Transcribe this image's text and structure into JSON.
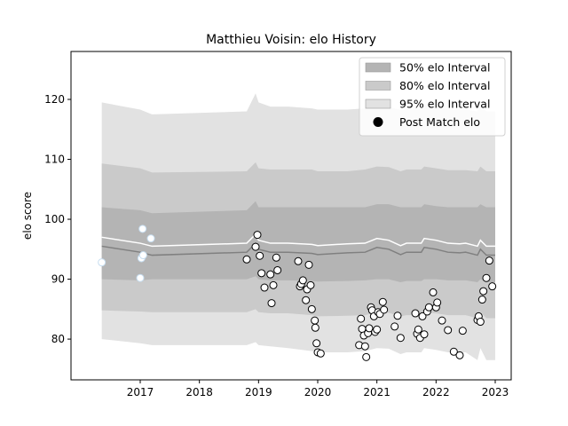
{
  "chart_data": {
    "type": "scatter",
    "title": "Matthieu Voisin: elo History",
    "xlabel": "",
    "ylabel": "elo score",
    "xlim": [
      2015.83,
      2023.27
    ],
    "ylim": [
      73.2,
      128.0
    ],
    "x_ticks": [
      2017,
      2018,
      2019,
      2020,
      2021,
      2022,
      2023
    ],
    "x_tick_labels": [
      "2017",
      "2018",
      "2019",
      "2020",
      "2021",
      "2022",
      "2023"
    ],
    "y_ticks": [
      80,
      90,
      100,
      110,
      120
    ],
    "y_tick_labels": [
      "80",
      "90",
      "100",
      "110",
      "120"
    ],
    "legend_position": "top-right",
    "legend": [
      {
        "label": "50% elo Interval",
        "kind": "patch",
        "color": "#b4b4b4"
      },
      {
        "label": "80% elo Interval",
        "kind": "patch",
        "color": "#cacaca"
      },
      {
        "label": "95% elo Interval",
        "kind": "patch",
        "color": "#e2e2e2"
      },
      {
        "label": "Post Match elo",
        "kind": "marker",
        "color": "#000000"
      }
    ],
    "bands": {
      "x": [
        2016.35,
        2017.0,
        2017.2,
        2018.8,
        2018.95,
        2019.0,
        2019.2,
        2019.5,
        2019.9,
        2020.0,
        2020.5,
        2020.8,
        2021.0,
        2021.2,
        2021.4,
        2021.5,
        2021.75,
        2021.8,
        2022.0,
        2022.2,
        2022.4,
        2022.5,
        2022.7,
        2022.75,
        2022.85,
        2023.0
      ],
      "mean": [
        97.0,
        96.0,
        95.5,
        96.0,
        97.5,
        96.5,
        96.0,
        96.0,
        95.8,
        95.6,
        95.9,
        96.0,
        96.8,
        96.5,
        95.6,
        96.0,
        96.0,
        96.8,
        96.5,
        96.0,
        95.9,
        96.0,
        95.5,
        96.5,
        95.5,
        95.5
      ],
      "p50": [
        [
          90.0,
          102.0
        ],
        [
          89.8,
          101.5
        ],
        [
          90.0,
          101.0
        ],
        [
          90.0,
          101.5
        ],
        [
          90.5,
          103.0
        ],
        [
          90.0,
          102.0
        ],
        [
          89.8,
          102.0
        ],
        [
          89.8,
          102.0
        ],
        [
          89.7,
          102.0
        ],
        [
          89.6,
          102.0
        ],
        [
          89.7,
          102.0
        ],
        [
          89.8,
          102.0
        ],
        [
          90.0,
          102.5
        ],
        [
          90.0,
          102.5
        ],
        [
          89.5,
          102.0
        ],
        [
          89.7,
          102.0
        ],
        [
          89.7,
          102.0
        ],
        [
          90.0,
          102.5
        ],
        [
          90.0,
          102.2
        ],
        [
          89.8,
          102.0
        ],
        [
          89.8,
          102.0
        ],
        [
          89.8,
          102.0
        ],
        [
          89.5,
          102.0
        ],
        [
          90.0,
          102.5
        ],
        [
          89.5,
          102.0
        ],
        [
          89.5,
          102.0
        ]
      ],
      "p80": [
        [
          84.8,
          109.3
        ],
        [
          84.6,
          108.5
        ],
        [
          84.5,
          107.8
        ],
        [
          84.5,
          108.0
        ],
        [
          85.0,
          109.5
        ],
        [
          84.5,
          108.5
        ],
        [
          84.3,
          108.3
        ],
        [
          84.3,
          108.3
        ],
        [
          84.0,
          108.3
        ],
        [
          83.8,
          108.0
        ],
        [
          83.9,
          108.0
        ],
        [
          84.0,
          108.3
        ],
        [
          84.5,
          108.8
        ],
        [
          84.4,
          108.7
        ],
        [
          83.8,
          108.0
        ],
        [
          84.0,
          108.3
        ],
        [
          84.0,
          108.3
        ],
        [
          84.5,
          108.8
        ],
        [
          84.3,
          108.5
        ],
        [
          84.0,
          108.2
        ],
        [
          84.0,
          108.2
        ],
        [
          84.0,
          108.2
        ],
        [
          83.5,
          108.0
        ],
        [
          84.5,
          108.8
        ],
        [
          83.5,
          108.0
        ],
        [
          83.5,
          108.0
        ]
      ],
      "p95": [
        [
          80.0,
          119.5
        ],
        [
          79.3,
          118.3
        ],
        [
          79.0,
          117.5
        ],
        [
          79.0,
          118.0
        ],
        [
          79.5,
          121.0
        ],
        [
          79.0,
          119.5
        ],
        [
          78.8,
          118.8
        ],
        [
          78.5,
          118.8
        ],
        [
          78.0,
          118.5
        ],
        [
          77.8,
          118.3
        ],
        [
          77.8,
          118.3
        ],
        [
          78.0,
          118.5
        ],
        [
          78.5,
          119.0
        ],
        [
          78.4,
          118.8
        ],
        [
          77.5,
          118.2
        ],
        [
          77.8,
          118.5
        ],
        [
          77.8,
          118.5
        ],
        [
          78.5,
          119.2
        ],
        [
          78.2,
          118.8
        ],
        [
          77.8,
          118.3
        ],
        [
          77.8,
          118.3
        ],
        [
          77.8,
          118.3
        ],
        [
          76.5,
          118.0
        ],
        [
          78.5,
          119.5
        ],
        [
          76.5,
          118.0
        ],
        [
          76.5,
          118.0
        ]
      ]
    },
    "series": [
      {
        "name": "Post Match elo",
        "x": [
          2016.35,
          2017.0,
          2017.02,
          2017.04,
          2017.05,
          2017.18,
          2018.8,
          2018.95,
          2018.98,
          2019.02,
          2019.05,
          2019.1,
          2019.2,
          2019.22,
          2019.25,
          2019.3,
          2019.32,
          2019.67,
          2019.7,
          2019.72,
          2019.75,
          2019.8,
          2019.82,
          2019.85,
          2019.88,
          2019.9,
          2019.95,
          2019.96,
          2019.98,
          2020.0,
          2020.05,
          2020.7,
          2020.73,
          2020.75,
          2020.78,
          2020.8,
          2020.82,
          2020.85,
          2020.87,
          2020.9,
          2020.92,
          2020.95,
          2020.97,
          2021.0,
          2021.02,
          2021.05,
          2021.1,
          2021.12,
          2021.3,
          2021.35,
          2021.4,
          2021.65,
          2021.68,
          2021.7,
          2021.73,
          2021.77,
          2021.8,
          2021.85,
          2021.88,
          2021.95,
          2022.0,
          2022.02,
          2022.1,
          2022.2,
          2022.3,
          2022.4,
          2022.45,
          2022.7,
          2022.72,
          2022.75,
          2022.78,
          2022.8,
          2022.85,
          2022.9,
          2022.95
        ],
        "y": [
          92.8,
          90.2,
          93.5,
          98.4,
          94.0,
          96.8,
          93.3,
          95.4,
          97.4,
          93.9,
          91.0,
          88.6,
          90.8,
          86.0,
          89.0,
          93.6,
          91.5,
          93.0,
          88.8,
          89.2,
          89.8,
          86.5,
          88.3,
          92.4,
          89.0,
          85.0,
          83.1,
          81.9,
          79.3,
          77.8,
          77.6,
          79.0,
          83.4,
          81.7,
          80.6,
          78.8,
          77.0,
          81.0,
          81.8,
          85.3,
          84.8,
          83.8,
          81.2,
          81.6,
          84.5,
          84.2,
          86.2,
          84.9,
          82.1,
          83.9,
          80.2,
          84.3,
          80.9,
          81.6,
          80.2,
          83.8,
          80.8,
          84.6,
          85.3,
          87.8,
          85.3,
          86.1,
          83.1,
          81.5,
          77.9,
          77.3,
          81.4,
          83.2,
          83.8,
          82.9,
          86.6,
          88.0,
          90.2,
          93.1,
          88.8
        ]
      }
    ]
  }
}
